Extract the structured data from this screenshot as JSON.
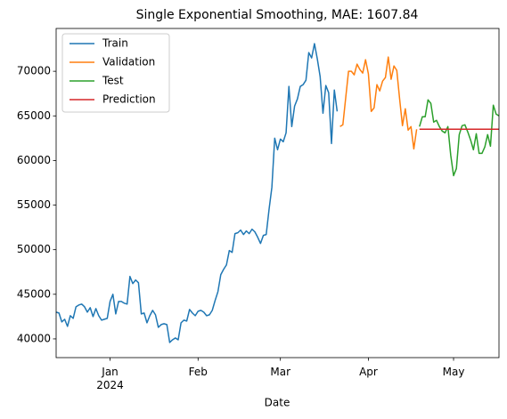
{
  "chart_data": {
    "type": "line",
    "title": "Single Exponential Smoothing, MAE: 1607.84",
    "xlabel": "Date",
    "legend": "upper left",
    "xlim": [
      "2023-12-13",
      "2024-05-17"
    ],
    "xticks": [
      {
        "value": "2024-01-01",
        "label": "Jan\n2024"
      },
      {
        "value": "2024-02-01",
        "label": "Feb"
      },
      {
        "value": "2024-03-01",
        "label": "Mar"
      },
      {
        "value": "2024-04-01",
        "label": "Apr"
      },
      {
        "value": "2024-05-01",
        "label": "May"
      }
    ],
    "ylim": [
      37900,
      74800
    ],
    "yticks": [
      40000,
      45000,
      50000,
      55000,
      60000,
      65000,
      70000
    ],
    "series": [
      {
        "name": "Train",
        "color": "#1f77b4",
        "x": [
          "2023-12-13",
          "2023-12-14",
          "2023-12-15",
          "2023-12-16",
          "2023-12-17",
          "2023-12-18",
          "2023-12-19",
          "2023-12-20",
          "2023-12-21",
          "2023-12-22",
          "2023-12-23",
          "2023-12-24",
          "2023-12-25",
          "2023-12-26",
          "2023-12-27",
          "2023-12-28",
          "2023-12-29",
          "2023-12-30",
          "2023-12-31",
          "2024-01-01",
          "2024-01-02",
          "2024-01-03",
          "2024-01-04",
          "2024-01-05",
          "2024-01-06",
          "2024-01-07",
          "2024-01-08",
          "2024-01-09",
          "2024-01-10",
          "2024-01-11",
          "2024-01-12",
          "2024-01-13",
          "2024-01-14",
          "2024-01-15",
          "2024-01-16",
          "2024-01-17",
          "2024-01-18",
          "2024-01-19",
          "2024-01-20",
          "2024-01-21",
          "2024-01-22",
          "2024-01-23",
          "2024-01-24",
          "2024-01-25",
          "2024-01-26",
          "2024-01-27",
          "2024-01-28",
          "2024-01-29",
          "2024-01-30",
          "2024-01-31",
          "2024-02-01",
          "2024-02-02",
          "2024-02-03",
          "2024-02-04",
          "2024-02-05",
          "2024-02-06",
          "2024-02-07",
          "2024-02-08",
          "2024-02-09",
          "2024-02-10",
          "2024-02-11",
          "2024-02-12",
          "2024-02-13",
          "2024-02-14",
          "2024-02-15",
          "2024-02-16",
          "2024-02-17",
          "2024-02-18",
          "2024-02-19",
          "2024-02-20",
          "2024-02-21",
          "2024-02-22",
          "2024-02-23",
          "2024-02-24",
          "2024-02-25",
          "2024-02-26",
          "2024-02-27",
          "2024-02-28",
          "2024-02-29",
          "2024-03-01",
          "2024-03-02",
          "2024-03-03",
          "2024-03-04",
          "2024-03-05",
          "2024-03-06",
          "2024-03-07",
          "2024-03-08",
          "2024-03-09",
          "2024-03-10",
          "2024-03-11",
          "2024-03-12",
          "2024-03-13",
          "2024-03-14",
          "2024-03-15",
          "2024-03-16",
          "2024-03-17",
          "2024-03-18",
          "2024-03-19",
          "2024-03-20",
          "2024-03-21"
        ],
        "values": [
          43000,
          42900,
          41900,
          42200,
          41400,
          42600,
          42300,
          43600,
          43800,
          43900,
          43600,
          43000,
          43500,
          42500,
          43400,
          42600,
          42100,
          42200,
          42300,
          44200,
          45000,
          42800,
          44200,
          44200,
          44000,
          43900,
          47000,
          46200,
          46600,
          46300,
          42800,
          42900,
          41800,
          42600,
          43200,
          42700,
          41300,
          41600,
          41700,
          41600,
          39600,
          39900,
          40100,
          39900,
          41800,
          42100,
          42000,
          43300,
          42900,
          42600,
          43100,
          43200,
          43000,
          42600,
          42700,
          43200,
          44300,
          45300,
          47200,
          47800,
          48300,
          49900,
          49700,
          51800,
          51900,
          52200,
          51700,
          52100,
          51800,
          52300,
          52000,
          51400,
          50700,
          51600,
          51700,
          54500,
          57000,
          62500,
          61200,
          62400,
          62100,
          63100,
          68300,
          63800,
          66100,
          66900,
          68300,
          68500,
          69000,
          72100,
          71500,
          73100,
          71400,
          69400,
          65300,
          68400,
          67600,
          61900,
          67900,
          65500
        ]
      },
      {
        "name": "Validation",
        "color": "#ff7f0e",
        "x": [
          "2024-03-22",
          "2024-03-23",
          "2024-03-24",
          "2024-03-25",
          "2024-03-26",
          "2024-03-27",
          "2024-03-28",
          "2024-03-29",
          "2024-03-30",
          "2024-03-31",
          "2024-04-01",
          "2024-04-02",
          "2024-04-03",
          "2024-04-04",
          "2024-04-05",
          "2024-04-06",
          "2024-04-07",
          "2024-04-08",
          "2024-04-09",
          "2024-04-10",
          "2024-04-11",
          "2024-04-12",
          "2024-04-13",
          "2024-04-14",
          "2024-04-15",
          "2024-04-16",
          "2024-04-17",
          "2024-04-18"
        ],
        "values": [
          63800,
          64000,
          67000,
          70000,
          70000,
          69600,
          70800,
          70200,
          69800,
          71300,
          69700,
          65500,
          65900,
          68500,
          67800,
          68900,
          69300,
          71600,
          69100,
          70600,
          70100,
          66900,
          63900,
          65800,
          63400,
          63800,
          61300,
          63500
        ]
      },
      {
        "name": "Test",
        "color": "#2ca02c",
        "x": [
          "2024-04-19",
          "2024-04-20",
          "2024-04-21",
          "2024-04-22",
          "2024-04-23",
          "2024-04-24",
          "2024-04-25",
          "2024-04-26",
          "2024-04-27",
          "2024-04-28",
          "2024-04-29",
          "2024-04-30",
          "2024-05-01",
          "2024-05-02",
          "2024-05-03",
          "2024-05-04",
          "2024-05-05",
          "2024-05-06",
          "2024-05-07",
          "2024-05-08",
          "2024-05-09",
          "2024-05-10",
          "2024-05-11",
          "2024-05-12",
          "2024-05-13",
          "2024-05-14",
          "2024-05-15",
          "2024-05-16",
          "2024-05-17"
        ],
        "values": [
          63800,
          64900,
          64900,
          66800,
          66400,
          64300,
          64500,
          63800,
          63300,
          63100,
          63800,
          60600,
          58300,
          59100,
          62900,
          63900,
          64000,
          63200,
          62300,
          61200,
          63000,
          60800,
          60800,
          61500,
          62900,
          61600,
          66200,
          65200,
          65000
        ]
      },
      {
        "name": "Prediction",
        "color": "#d62728",
        "x": [
          "2024-04-19",
          "2024-05-17"
        ],
        "values": [
          63500,
          63500
        ]
      }
    ]
  }
}
